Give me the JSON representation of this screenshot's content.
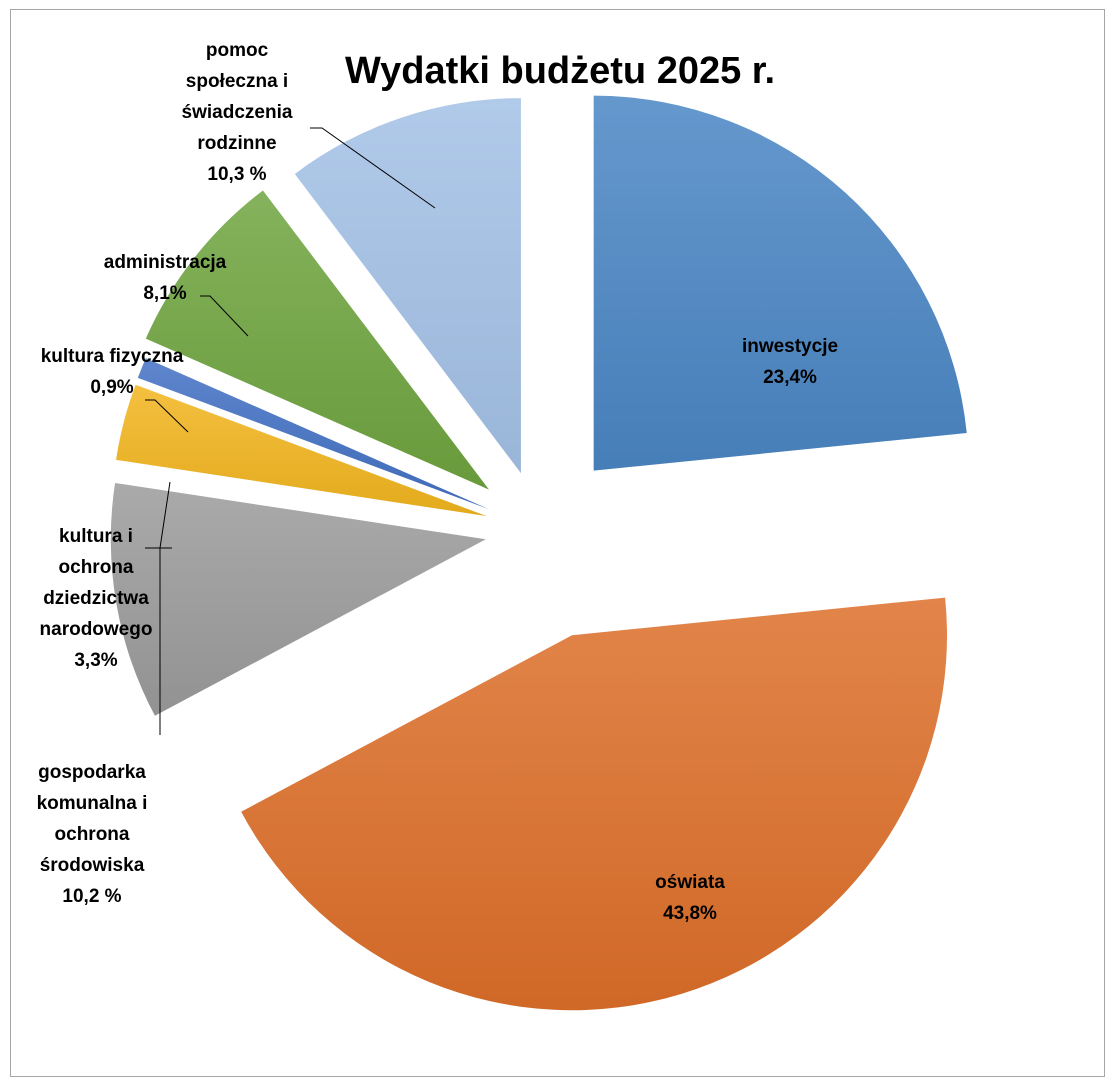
{
  "chart_data": {
    "type": "pie",
    "title": "Wydatki budżetu 2025 r.",
    "exploded": true,
    "slices": [
      {
        "label": "inwestycje",
        "value_text": "23,4%",
        "value": 23.4,
        "color": "#4a86c4"
      },
      {
        "label": "oświata",
        "value_text": "43,8%",
        "value": 43.8,
        "color": "#dd6f2a"
      },
      {
        "label": "gospodarka komunalna i ochrona środowiska",
        "value_text": "10,2 %",
        "value": 10.2,
        "color": "#9b9b9b"
      },
      {
        "label": "kultura i ochrona dziedzictwa narodowego",
        "value_text": "3,3%",
        "value": 3.3,
        "color": "#f2b51e"
      },
      {
        "label": "kultura fizyczna",
        "value_text": "0,9%",
        "value": 0.9,
        "color": "#4371c4"
      },
      {
        "label": "administracja",
        "value_text": "8,1%",
        "value": 8.1,
        "color": "#6fa43f"
      },
      {
        "label": "pomoc społeczna i świadczenia rodzinne",
        "value_text": "10,3 %",
        "value": 10.3,
        "color": "#a3c1e6"
      }
    ]
  }
}
